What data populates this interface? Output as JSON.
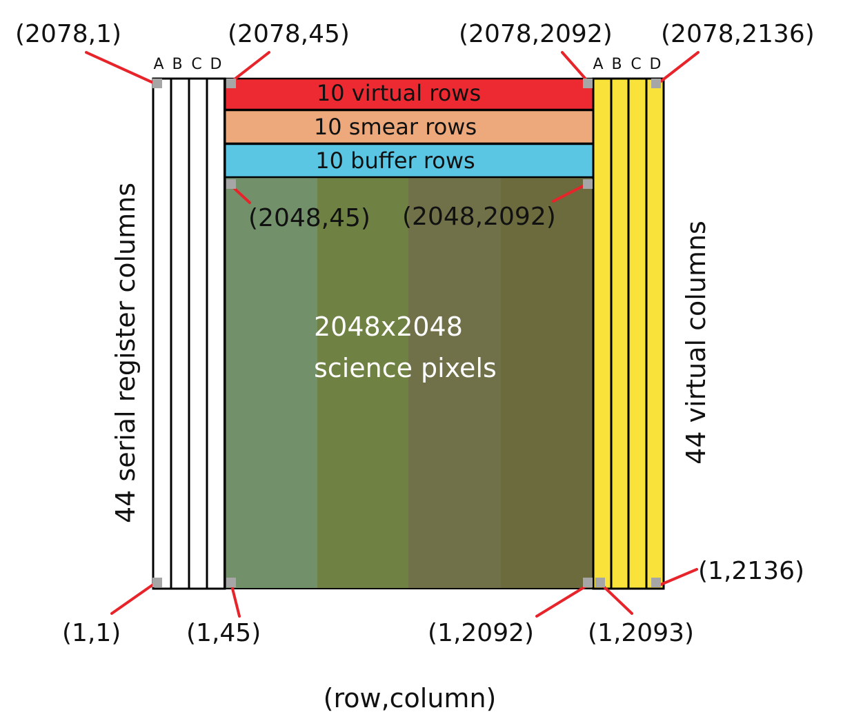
{
  "diagram": {
    "axis_caption": "(row,column)",
    "left_block": {
      "caption": "44 serial register columns",
      "column_letters": [
        "A",
        "B",
        "C",
        "D"
      ]
    },
    "right_block": {
      "caption": "44 virtual columns",
      "column_letters": [
        "A",
        "B",
        "C",
        "D"
      ],
      "fill_color": "#f9e23a"
    },
    "top_bands": [
      {
        "label": "10 virtual rows",
        "color": "#ed2a32"
      },
      {
        "label": "10 smear rows",
        "color": "#eda97b"
      },
      {
        "label": "10 buffer rows",
        "color": "#5ac6e3"
      }
    ],
    "science_area": {
      "label_line1": "2048x2048",
      "label_line2": "science pixels",
      "strip_colors": [
        "#72916a",
        "#6f8244",
        "#707149",
        "#6b6b3e"
      ]
    },
    "corner_labels": [
      {
        "id": "tl-outer",
        "text": "(2078,1)"
      },
      {
        "id": "tl-inner",
        "text": "(2078,45)"
      },
      {
        "id": "tr-inner",
        "text": "(2078,2092)"
      },
      {
        "id": "tr-outer",
        "text": "(2078,2136)"
      },
      {
        "id": "science-tl",
        "text": "(2048,45)"
      },
      {
        "id": "science-tr",
        "text": "(2048,2092)"
      },
      {
        "id": "bl-outer",
        "text": "(1,1)"
      },
      {
        "id": "bl-inner",
        "text": "(1,45)"
      },
      {
        "id": "br-inner",
        "text": "(1,2092)"
      },
      {
        "id": "br-virtual",
        "text": "(1,2093)"
      },
      {
        "id": "br-outer",
        "text": "(1,2136)"
      }
    ],
    "colors": {
      "leader_line": "#e8242b",
      "corner_marker": "#a6a6a6",
      "outline": "#000000"
    }
  }
}
